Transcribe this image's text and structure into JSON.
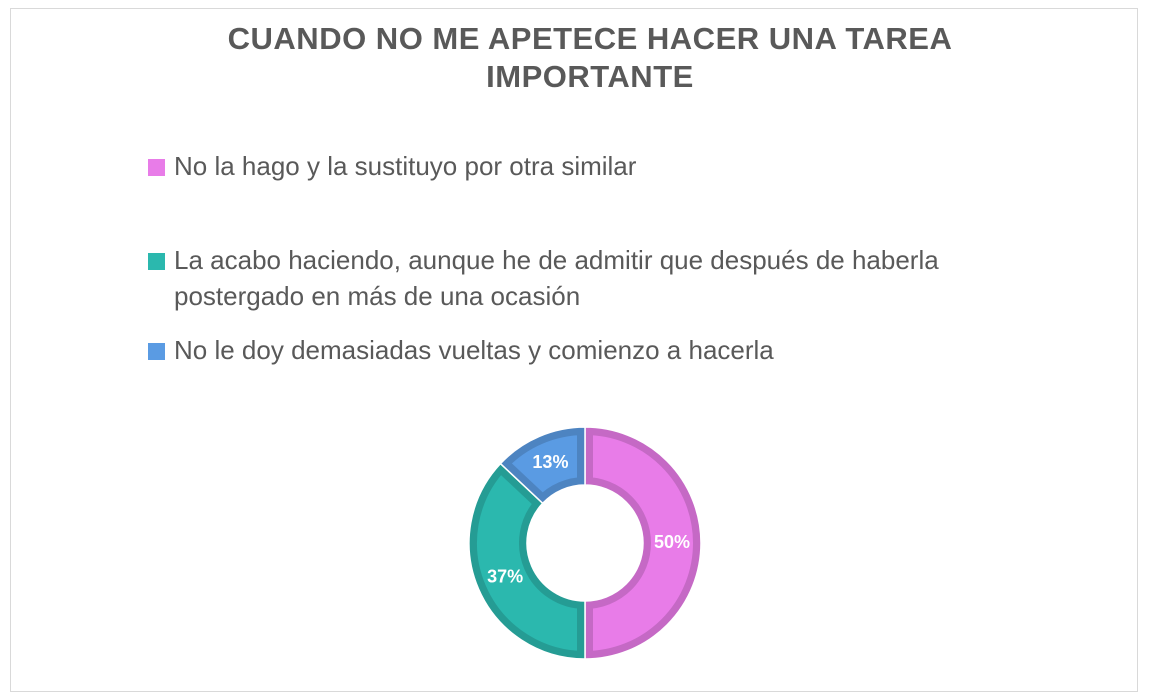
{
  "chart_data": {
    "type": "donut",
    "title": "CUANDO NO ME APETECE HACER UNA TAREA IMPORTANTE",
    "categories": [
      "No la hago y la sustituyo por otra similar",
      "La acabo haciendo, aunque he de admitir que después de haberla postergado en más de una ocasión",
      "No le doy demasiadas vueltas y comienzo a hacerla"
    ],
    "values": [
      50,
      37,
      13
    ],
    "value_labels": [
      "50%",
      "37%",
      "13%"
    ],
    "colors": [
      "#e87ce8",
      "#2bb8ae",
      "#5a9be3"
    ],
    "legend": "top"
  }
}
